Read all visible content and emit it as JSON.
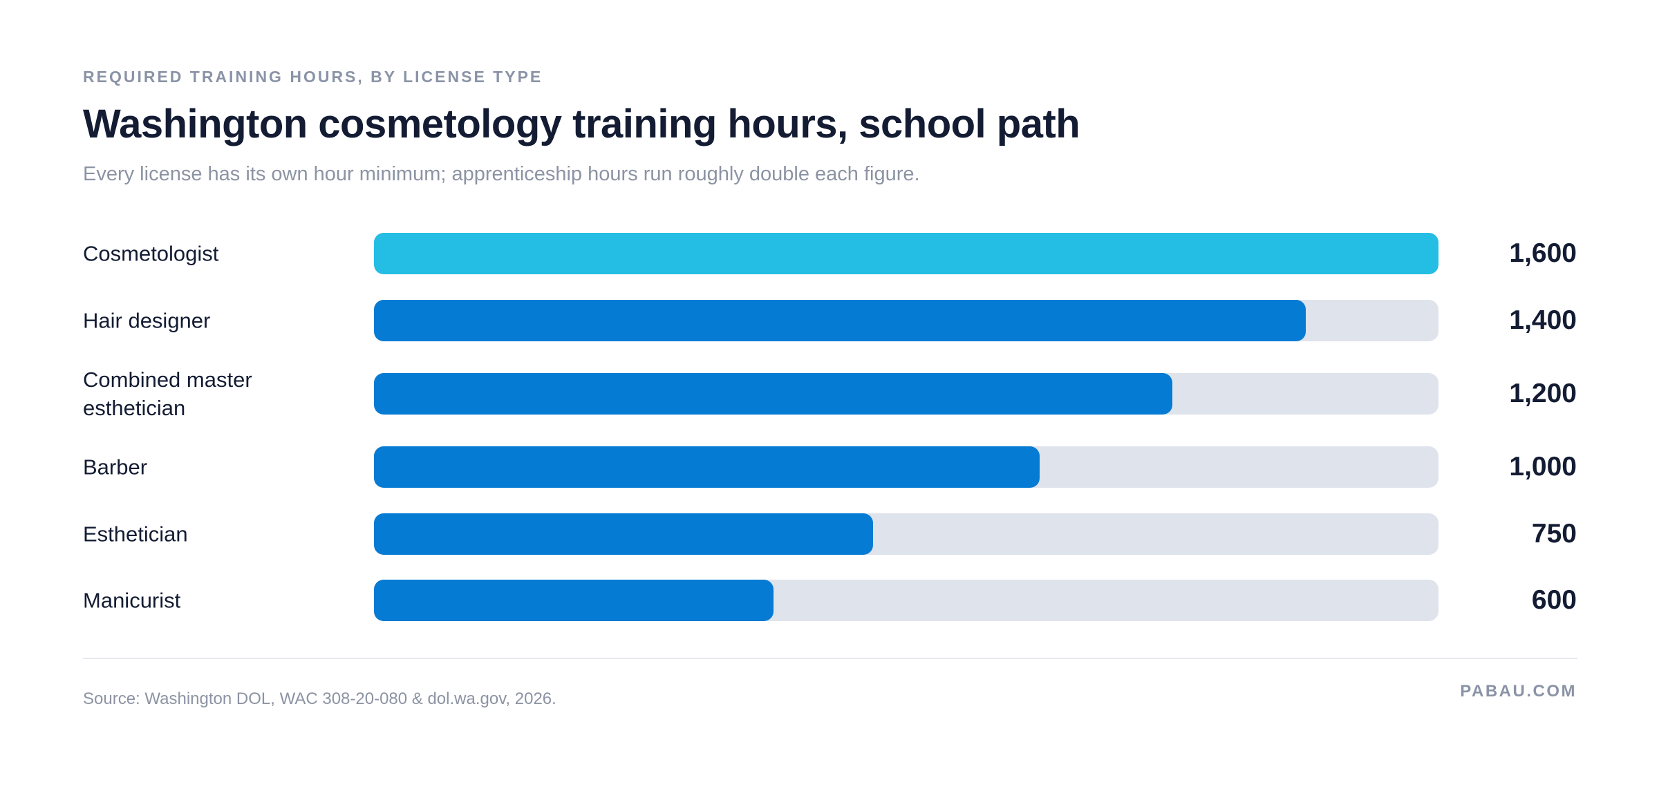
{
  "header": {
    "eyebrow": "REQUIRED TRAINING HOURS, BY LICENSE TYPE",
    "title": "Washington cosmetology training hours, school path",
    "subtitle": "Every license has its own hour minimum; apprenticeship hours run roughly double each figure."
  },
  "chart_data": {
    "type": "bar",
    "orientation": "horizontal",
    "categories": [
      "Cosmetologist",
      "Hair designer",
      "Combined master esthetician",
      "Barber",
      "Esthetician",
      "Manicurist"
    ],
    "values": [
      1600,
      1400,
      1200,
      1000,
      750,
      600
    ],
    "value_labels": [
      "1,600",
      "1,400",
      "1,200",
      "1,000",
      "750",
      "600"
    ],
    "xlim": [
      0,
      1600
    ],
    "highlight_index": 0,
    "colors": {
      "highlight": "#24bde3",
      "bar": "#067bd4",
      "track": "#dfe3ec"
    },
    "grid": false,
    "legend": "none"
  },
  "footer": {
    "source": "Source: Washington DOL, WAC 308-20-080 & dol.wa.gov, 2026.",
    "brand": "PABAU.COM"
  }
}
